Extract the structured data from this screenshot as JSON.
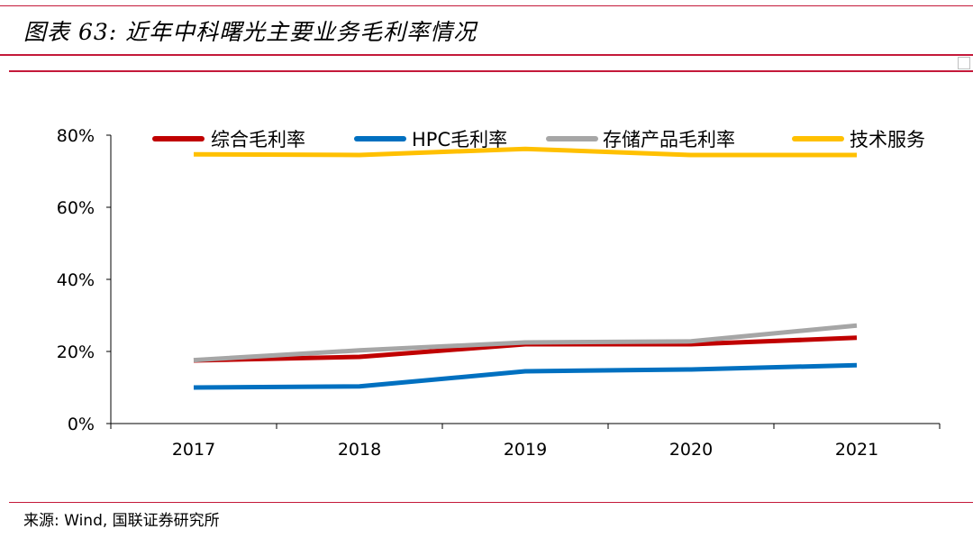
{
  "header": {
    "title": "图表 63: 近年中科曙光主要业务毛利率情况"
  },
  "footer": {
    "source": "来源: Wind, 国联证券研究所"
  },
  "chart_data": {
    "type": "line",
    "categories": [
      "2017",
      "2018",
      "2019",
      "2020",
      "2021"
    ],
    "y_ticks": [
      "0%",
      "20%",
      "40%",
      "60%",
      "80%"
    ],
    "ylim": [
      0,
      80
    ],
    "grid": false,
    "legend_position": "top",
    "series": [
      {
        "name": "综合毛利率",
        "color": "#c00000",
        "values": [
          17.5,
          18.5,
          22.0,
          22.0,
          23.8
        ]
      },
      {
        "name": "HPC毛利率",
        "color": "#0070c0",
        "values": [
          10.0,
          10.3,
          14.5,
          15.0,
          16.2
        ]
      },
      {
        "name": "存储产品毛利率",
        "color": "#a6a6a6",
        "values": [
          17.6,
          20.3,
          22.5,
          22.8,
          27.2
        ]
      },
      {
        "name": "技术服务",
        "color": "#ffc000",
        "values": [
          74.7,
          74.5,
          76.2,
          74.5,
          74.5
        ]
      }
    ]
  }
}
